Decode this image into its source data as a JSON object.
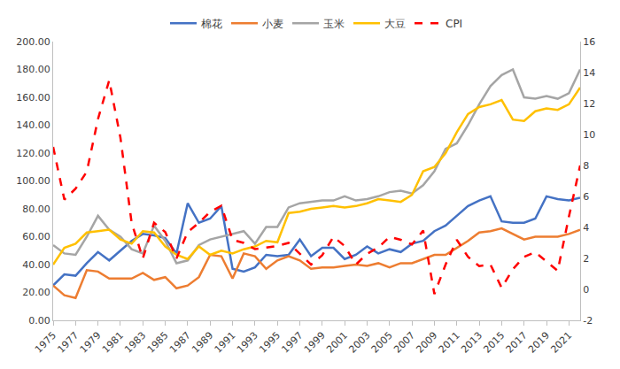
{
  "chart_data": {
    "type": "line",
    "x": [
      1975,
      1976,
      1977,
      1978,
      1979,
      1980,
      1981,
      1982,
      1983,
      1984,
      1985,
      1986,
      1987,
      1988,
      1989,
      1990,
      1991,
      1992,
      1993,
      1994,
      1995,
      1996,
      1997,
      1998,
      1999,
      2000,
      2001,
      2002,
      2003,
      2004,
      2005,
      2006,
      2007,
      2008,
      2009,
      2010,
      2011,
      2012,
      2013,
      2014,
      2015,
      2016,
      2017,
      2018,
      2019,
      2020,
      2021,
      2022
    ],
    "xlim": [
      1975,
      2022
    ],
    "xticks": [
      1975,
      1977,
      1979,
      1981,
      1983,
      1985,
      1987,
      1989,
      1991,
      1993,
      1995,
      1997,
      1999,
      2001,
      2003,
      2005,
      2007,
      2009,
      2011,
      2013,
      2015,
      2017,
      2019,
      2021
    ],
    "ylim": [
      0,
      200
    ],
    "yticks": [
      {
        "value": 0,
        "label": "0.00"
      },
      {
        "value": 20,
        "label": "20.00"
      },
      {
        "value": 40,
        "label": "40.00"
      },
      {
        "value": 60,
        "label": "60.00"
      },
      {
        "value": 80,
        "label": "80.00"
      },
      {
        "value": 100,
        "label": "100.00"
      },
      {
        "value": 120,
        "label": "120.00"
      },
      {
        "value": 140,
        "label": "140.00"
      },
      {
        "value": 160,
        "label": "160.00"
      },
      {
        "value": 180,
        "label": "180.00"
      },
      {
        "value": 200,
        "label": "200.00"
      }
    ],
    "y2lim": [
      -2,
      16
    ],
    "y2ticks": [
      -2,
      0,
      2,
      4,
      6,
      8,
      10,
      12,
      14,
      16
    ],
    "grid": false,
    "legend": "top",
    "series": [
      {
        "name": "棉花",
        "color": "#4472C4",
        "line_style": "solid",
        "values": [
          25,
          33,
          32,
          41,
          49,
          43,
          50,
          57,
          62,
          61,
          59,
          48,
          84,
          70,
          73,
          82,
          37,
          35,
          38,
          47,
          46,
          47,
          58,
          46,
          52,
          52,
          44,
          47,
          53,
          48,
          51,
          49,
          55,
          57,
          64,
          68,
          75,
          82,
          86,
          89,
          71,
          70,
          70,
          73,
          89,
          87,
          86,
          88
        ]
      },
      {
        "name": "小麦",
        "color": "#ED7D31",
        "line_style": "solid",
        "values": [
          25,
          18,
          16,
          36,
          35,
          30,
          30,
          30,
          34,
          29,
          31,
          23,
          25,
          31,
          47,
          46,
          30,
          48,
          46,
          37,
          43,
          46,
          43,
          37,
          38,
          38,
          39,
          40,
          39,
          41,
          38,
          41,
          41,
          44,
          47,
          47,
          52,
          57,
          63,
          64,
          66,
          62,
          58,
          60,
          60,
          60,
          62,
          65
        ]
      },
      {
        "name": "玉米",
        "color": "#A5A5A5",
        "line_style": "solid",
        "values": [
          54,
          48,
          47,
          60,
          75,
          65,
          60,
          51,
          48,
          68,
          57,
          41,
          43,
          54,
          58,
          60,
          62,
          64,
          55,
          67,
          67,
          81,
          84,
          85,
          86,
          86,
          89,
          86,
          87,
          89,
          92,
          93,
          91,
          97,
          107,
          123,
          127,
          140,
          155,
          168,
          176,
          180,
          160,
          159,
          161,
          159,
          163,
          180
        ]
      },
      {
        "name": "大豆",
        "color": "#FFC000",
        "line_style": "solid",
        "values": [
          40,
          52,
          55,
          63,
          64,
          65,
          58,
          55,
          64,
          63,
          53,
          47,
          44,
          53,
          47,
          50,
          48,
          51,
          53,
          57,
          56,
          77,
          78,
          80,
          81,
          82,
          81,
          82,
          84,
          87,
          86,
          85,
          90,
          107,
          110,
          120,
          135,
          148,
          153,
          155,
          158,
          144,
          143,
          150,
          152,
          151,
          155,
          167
        ]
      },
      {
        "name": "CPI",
        "color": "#FF0000",
        "line_style": "dash",
        "axis": "y2",
        "values": [
          9.2,
          5.8,
          6.5,
          7.6,
          11,
          13.5,
          9.8,
          4.3,
          2.0,
          4.3,
          3.7,
          2.0,
          3.7,
          4.3,
          5.0,
          5.4,
          3.2,
          3.0,
          2.6,
          2.7,
          2.8,
          3.0,
          2.3,
          1.6,
          2.2,
          3.4,
          2.8,
          1.6,
          2.3,
          2.7,
          3.4,
          3.2,
          2.9,
          3.8,
          -0.3,
          1.6,
          3.2,
          2.1,
          1.5,
          1.6,
          0.1,
          1.3,
          2.1,
          2.4,
          1.8,
          1.2,
          4.7,
          8.0
        ]
      }
    ]
  }
}
